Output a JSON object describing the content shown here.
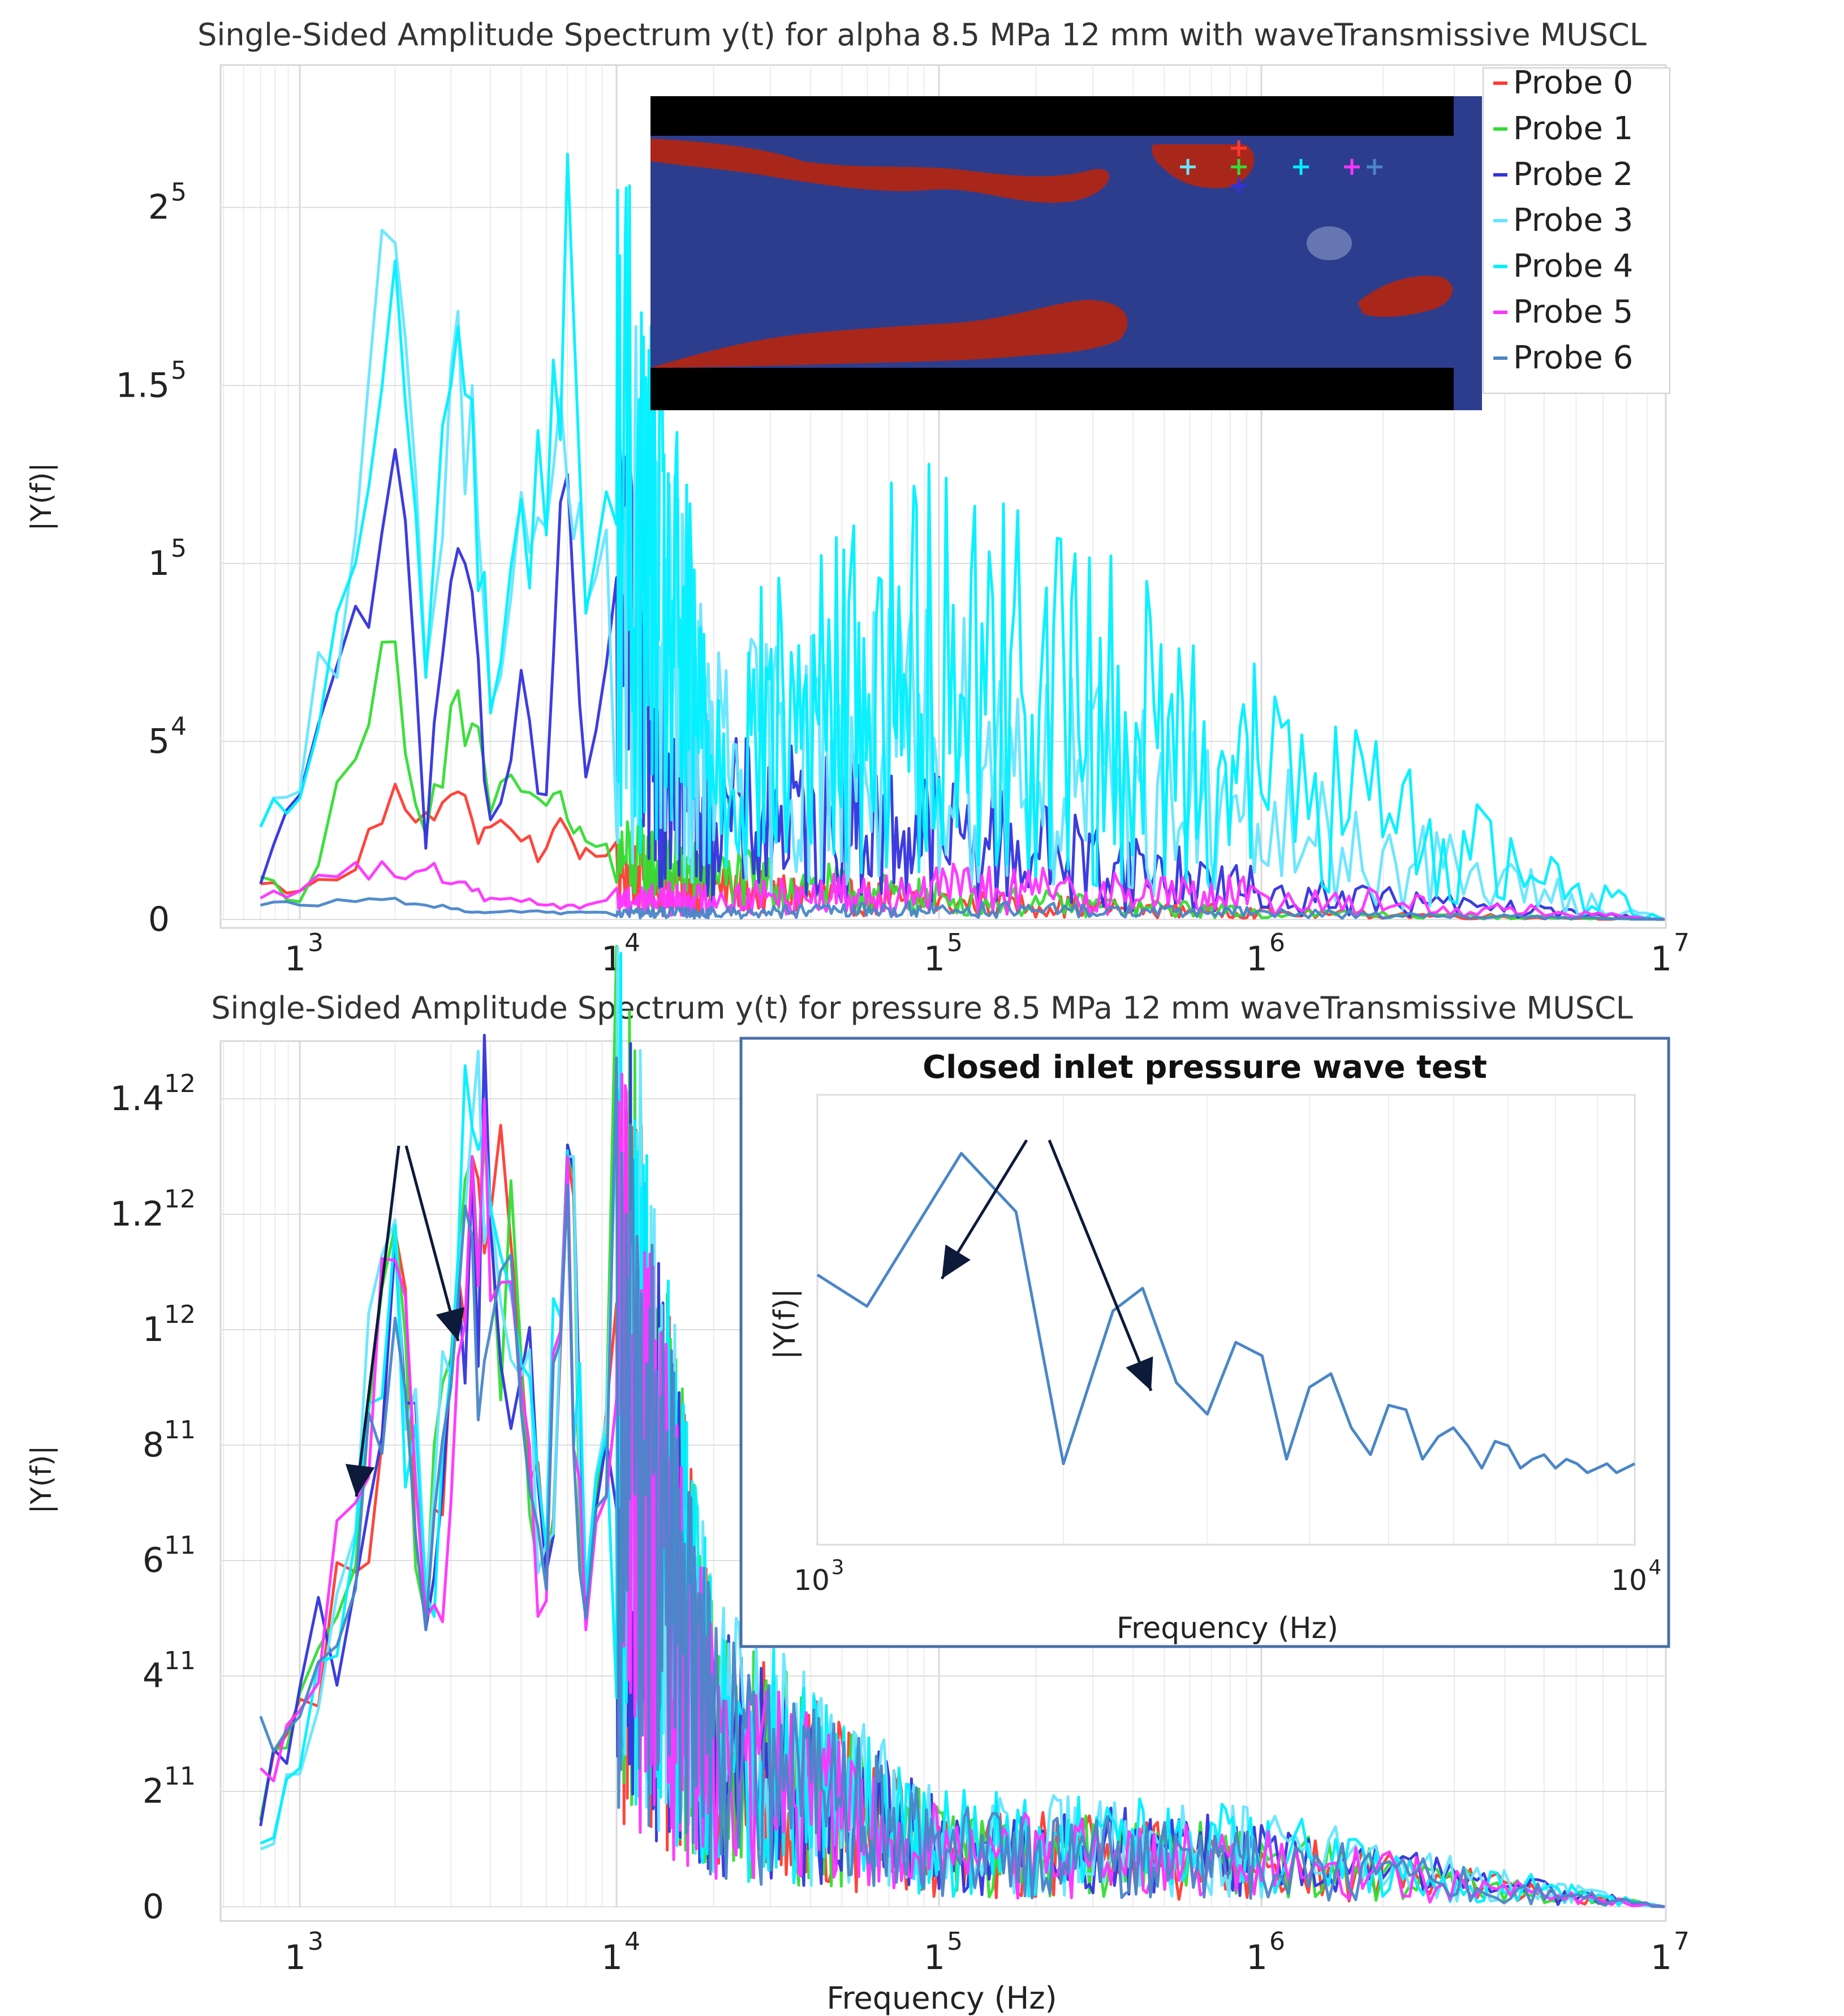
{
  "colors": {
    "probe0": "#ff3b30",
    "probe1": "#33dd33",
    "probe2": "#3333dd",
    "probe3": "#66e6ff",
    "probe4": "#00f0ff",
    "probe5": "#ff33ff",
    "probe6": "#4a86c8",
    "field_liquid": "#a8271a",
    "field_gas": "#2d3d8e",
    "arrow": "#0d1a3a"
  },
  "chart_data": [
    {
      "type": "line",
      "title": "Single-Sided Amplitude Spectrum y(t) for alpha 8.5 MPa 12 mm with waveTransmissive MUSCL",
      "xlabel": "",
      "ylabel": "|Y(f)|",
      "xscale": "log-style",
      "xlim": [
        700,
        10000000
      ],
      "x_ticks": [
        {
          "base": "1",
          "exp": "3"
        },
        {
          "base": "1",
          "exp": "4"
        },
        {
          "base": "1",
          "exp": "5"
        },
        {
          "base": "1",
          "exp": "6"
        },
        {
          "base": "1",
          "exp": "7"
        }
      ],
      "y_ticks": [
        {
          "base": "0",
          "exp": ""
        },
        {
          "base": "5",
          "exp": "4"
        },
        {
          "base": "1",
          "exp": "5"
        },
        {
          "base": "1.5",
          "exp": "5"
        },
        {
          "base": "2",
          "exp": "5"
        }
      ],
      "ylim": [
        0,
        240000
      ],
      "grid": true,
      "legend_position": "top-right",
      "series": [
        {
          "name": "Probe 0",
          "x": [
            700,
            1000,
            1500,
            2000,
            2500,
            3000,
            3500,
            4000,
            5000,
            6000,
            7000,
            8000,
            10000,
            20000,
            100000,
            1000000,
            10000000
          ],
          "values": [
            10000,
            8000,
            14000,
            38000,
            30000,
            35000,
            28000,
            26000,
            22000,
            20000,
            25000,
            20000,
            14000,
            9000,
            5000,
            2000,
            0
          ]
        },
        {
          "name": "Probe 1",
          "x": [
            700,
            1000,
            1500,
            2000,
            2500,
            3000,
            3500,
            4000,
            5000,
            6000,
            7000,
            8000,
            10000,
            20000,
            100000,
            1000000,
            10000000
          ],
          "values": [
            12000,
            5000,
            45000,
            78000,
            24000,
            60000,
            55000,
            30000,
            36000,
            32000,
            28000,
            22000,
            18000,
            12000,
            6000,
            2000,
            0
          ]
        },
        {
          "name": "Probe 2",
          "x": [
            700,
            1000,
            1500,
            2000,
            2500,
            3000,
            3500,
            4000,
            5000,
            6000,
            7000,
            8000,
            10000,
            20000,
            100000,
            1000000,
            10000000
          ],
          "values": [
            10000,
            35000,
            88000,
            132000,
            20000,
            95000,
            92000,
            28000,
            70000,
            35000,
            125000,
            40000,
            80000,
            30000,
            25000,
            8000,
            0
          ]
        },
        {
          "name": "Probe 3",
          "x": [
            700,
            1000,
            1500,
            2000,
            2500,
            3000,
            3500,
            4000,
            5000,
            6000,
            7000,
            8000,
            10000,
            20000,
            100000,
            1000000,
            10000000
          ],
          "values": [
            26000,
            36000,
            108000,
            190000,
            70000,
            155000,
            150000,
            60000,
            120000,
            110000,
            122000,
            88000,
            112000,
            45000,
            52000,
            26000,
            0
          ]
        },
        {
          "name": "Probe 4",
          "x": [
            700,
            1000,
            1500,
            2000,
            2500,
            3000,
            3500,
            4000,
            5000,
            6000,
            7000,
            8000,
            10000,
            20000,
            100000,
            1000000,
            10000000
          ],
          "values": [
            26000,
            34000,
            100000,
            185000,
            68000,
            150000,
            146000,
            58000,
            118000,
            108000,
            215000,
            86000,
            132000,
            48000,
            78000,
            42000,
            0
          ]
        },
        {
          "name": "Probe 5",
          "x": [
            700,
            1000,
            1500,
            2000,
            2500,
            3000,
            3500,
            4000,
            5000,
            6000,
            7000,
            8000,
            10000,
            20000,
            100000,
            1000000,
            10000000
          ],
          "values": [
            6000,
            8000,
            16000,
            12000,
            14000,
            10000,
            8000,
            6000,
            5000,
            4000,
            4000,
            4000,
            6000,
            6000,
            9000,
            7000,
            0
          ]
        },
        {
          "name": "Probe 6",
          "x": [
            700,
            1000,
            1500,
            2000,
            2500,
            3000,
            3500,
            4000,
            5000,
            6000,
            7000,
            8000,
            10000,
            20000,
            100000,
            1000000,
            10000000
          ],
          "values": [
            4000,
            4000,
            5000,
            6000,
            4000,
            3000,
            2000,
            2000,
            2000,
            2000,
            2000,
            2000,
            2000,
            2000,
            3000,
            2000,
            0
          ]
        }
      ],
      "probe_marker_colors": [
        "#ff3b30",
        "#33dd33",
        "#3333dd",
        "#66e6ff",
        "#00f0ff",
        "#ff33ff",
        "#4a86c8"
      ]
    },
    {
      "type": "line",
      "title": "Single-Sided Amplitude Spectrum y(t) for pressure 8.5 MPa 12 mm waveTransmissive MUSCL",
      "xlabel": "Frequency (Hz)",
      "ylabel": "|Y(f)|",
      "xscale": "log-style",
      "xlim": [
        700,
        10000000
      ],
      "x_ticks": [
        {
          "base": "1",
          "exp": "3"
        },
        {
          "base": "1",
          "exp": "4"
        },
        {
          "base": "1",
          "exp": "5"
        },
        {
          "base": "1",
          "exp": "6"
        },
        {
          "base": "1",
          "exp": "7"
        }
      ],
      "y_ticks": [
        {
          "base": "0",
          "exp": ""
        },
        {
          "base": "2",
          "exp": "11"
        },
        {
          "base": "4",
          "exp": "11"
        },
        {
          "base": "6",
          "exp": "11"
        },
        {
          "base": "8",
          "exp": "11"
        },
        {
          "base": "1",
          "exp": "12"
        },
        {
          "base": "1.2",
          "exp": "12"
        },
        {
          "base": "1.4",
          "exp": "12"
        }
      ],
      "ylim": [
        0,
        1500000000000.0
      ],
      "grid": true,
      "series": [
        {
          "name": "Probe 0",
          "x": [
            700,
            1000,
            1500,
            2000,
            2500,
            3000,
            3500,
            4000,
            5000,
            6000,
            7000,
            8000,
            10000,
            20000,
            100000,
            1000000,
            10000000
          ],
          "values": [
            150000000000.0,
            360000000000.0,
            580000000000.0,
            1170000000000.0,
            500000000000.0,
            950000000000.0,
            1300000000000.0,
            1200000000000.0,
            950000000000.0,
            590000000000.0,
            1300000000000.0,
            520000000000.0,
            970000000000.0,
            290000000000.0,
            100000000000.0,
            80000000000.0,
            0
          ]
        },
        {
          "name": "Probe 1",
          "x": [
            700,
            1000,
            1500,
            2000,
            2500,
            3000,
            3500,
            4000,
            5000,
            6000,
            7000,
            8000,
            10000,
            20000,
            100000,
            1000000,
            10000000
          ],
          "values": [
            150000000000.0,
            370000000000.0,
            590000000000.0,
            1180000000000.0,
            500000000000.0,
            950000000000.0,
            1300000000000.0,
            1200000000000.0,
            950000000000.0,
            600000000000.0,
            1320000000000.0,
            520000000000.0,
            980000000000.0,
            300000000000.0,
            100000000000.0,
            80000000000.0,
            0
          ]
        },
        {
          "name": "Probe 2",
          "x": [
            700,
            1000,
            1500,
            2000,
            2500,
            3000,
            3500,
            4000,
            5000,
            6000,
            7000,
            8000,
            10000,
            20000,
            100000,
            1000000,
            10000000
          ],
          "values": [
            140000000000.0,
            380000000000.0,
            560000000000.0,
            1150000000000.0,
            480000000000.0,
            940000000000.0,
            1280000000000.0,
            1180000000000.0,
            920000000000.0,
            580000000000.0,
            1320000000000.0,
            500000000000.0,
            960000000000.0,
            280000000000.0,
            110000000000.0,
            90000000000.0,
            0
          ]
        },
        {
          "name": "Probe 3",
          "x": [
            700,
            1000,
            1500,
            2000,
            2500,
            3000,
            3500,
            4000,
            5000,
            6000,
            7000,
            8000,
            10000,
            20000,
            100000,
            1000000,
            10000000
          ],
          "values": [
            100000000000.0,
            230000000000.0,
            650000000000.0,
            1190000000000.0,
            550000000000.0,
            920000000000.0,
            1360000000000.0,
            1220000000000.0,
            920000000000.0,
            630000000000.0,
            1300000000000.0,
            550000000000.0,
            1020000000000.0,
            320000000000.0,
            120000000000.0,
            100000000000.0,
            0
          ]
        },
        {
          "name": "Probe 4",
          "x": [
            700,
            1000,
            1500,
            2000,
            2500,
            3000,
            3500,
            4000,
            5000,
            6000,
            7000,
            8000,
            10000,
            20000,
            100000,
            1000000,
            10000000
          ],
          "values": [
            110000000000.0,
            240000000000.0,
            640000000000.0,
            1180000000000.0,
            540000000000.0,
            930000000000.0,
            1350000000000.0,
            1210000000000.0,
            940000000000.0,
            620000000000.0,
            1310000000000.0,
            540000000000.0,
            1010000000000.0,
            310000000000.0,
            120000000000.0,
            100000000000.0,
            0
          ]
        },
        {
          "name": "Probe 5",
          "x": [
            700,
            1000,
            1500,
            2000,
            2500,
            3000,
            3500,
            4000,
            5000,
            6000,
            7000,
            8000,
            10000,
            20000,
            100000,
            1000000,
            10000000
          ],
          "values": [
            240000000000.0,
            340000000000.0,
            700000000000.0,
            1120000000000.0,
            500000000000.0,
            700000000000.0,
            1300000000000.0,
            1050000000000.0,
            900000000000.0,
            530000000000.0,
            1300000000000.0,
            480000000000.0,
            900000000000.0,
            260000000000.0,
            100000000000.0,
            80000000000.0,
            0
          ]
        },
        {
          "name": "Probe 6",
          "x": [
            700,
            1000,
            1500,
            2000,
            2500,
            3000,
            3500,
            4000,
            5000,
            6000,
            7000,
            8000,
            10000,
            20000,
            100000,
            1000000,
            10000000
          ],
          "values": [
            330000000000.0,
            330000000000.0,
            550000000000.0,
            1020000000000.0,
            480000000000.0,
            900000000000.0,
            1160000000000.0,
            1000000000000.0,
            860000000000.0,
            550000000000.0,
            1250000000000.0,
            500000000000.0,
            920000000000.0,
            290000000000.0,
            100000000000.0,
            80000000000.0,
            0
          ]
        }
      ]
    },
    {
      "type": "line",
      "title": "Closed inlet pressure wave test",
      "xlabel": "Frequency (Hz)",
      "ylabel": "|Y(f)|",
      "xscale": "log",
      "xlim": [
        1000,
        10000
      ],
      "x_ticks": [
        {
          "base": "10",
          "exp": "3"
        },
        {
          "base": "10",
          "exp": "4"
        }
      ],
      "grid": true,
      "series": [
        {
          "name": "",
          "x": [
            1000,
            1150,
            1500,
            1750,
            2000,
            2300,
            2500,
            2750,
            3000,
            3250,
            3500,
            3750,
            4000,
            4250,
            4500,
            4750,
            5000,
            5250,
            5500,
            5750,
            6000,
            6250,
            6500,
            6750,
            7000,
            7250,
            7500,
            7750,
            8000,
            8250,
            8500,
            8750,
            9000,
            9250,
            9500,
            9750,
            10000
          ],
          "values": [
            0.6,
            0.53,
            0.87,
            0.74,
            0.18,
            0.52,
            0.57,
            0.36,
            0.29,
            0.45,
            0.42,
            0.19,
            0.35,
            0.38,
            0.26,
            0.2,
            0.31,
            0.3,
            0.19,
            0.24,
            0.26,
            0.22,
            0.17,
            0.23,
            0.22,
            0.17,
            0.19,
            0.2,
            0.17,
            0.19,
            0.18,
            0.16,
            0.17,
            0.18,
            0.16,
            0.17,
            0.18
          ]
        }
      ]
    }
  ],
  "legend": {
    "entries": [
      "Probe 0",
      "Probe 1",
      "Probe 2",
      "Probe 3",
      "Probe 4",
      "Probe 5",
      "Probe 6"
    ]
  }
}
